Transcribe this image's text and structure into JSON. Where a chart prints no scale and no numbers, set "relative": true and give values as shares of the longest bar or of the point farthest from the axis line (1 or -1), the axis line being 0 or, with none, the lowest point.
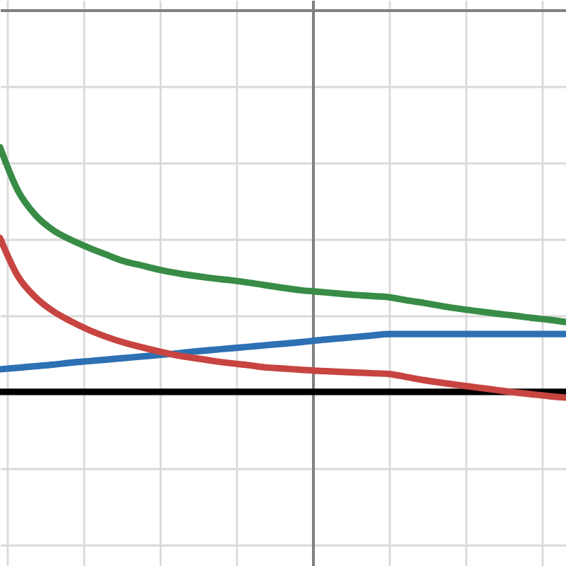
{
  "chart_data": {
    "type": "line",
    "relative": true,
    "grid": true,
    "line_style": "solid",
    "categories": [
      null,
      null,
      null,
      null,
      null,
      null,
      null,
      null,
      null,
      null,
      null,
      null,
      null,
      null,
      null,
      null,
      null,
      null,
      null,
      null,
      null,
      null,
      null,
      null,
      null,
      null,
      null,
      null,
      null,
      null,
      null,
      null,
      null
    ],
    "series": [
      {
        "color": "#000000",
        "values": [
          -0.985,
          -0.985,
          -0.985,
          -0.985,
          -0.985,
          -0.985,
          -0.985,
          -0.985,
          -0.985,
          -0.985,
          -0.985,
          -0.985,
          -0.985,
          -0.985,
          -0.985,
          -0.985,
          -0.985,
          -0.985,
          -0.985,
          -0.985,
          -0.985,
          -0.985,
          -0.985,
          -0.985,
          -0.985,
          -0.985,
          -0.985,
          -0.985,
          -0.985,
          -0.985,
          -0.985,
          -0.985,
          -0.985
        ]
      },
      {
        "color": "#2d70b3",
        "values": [
          -0.927,
          -0.923,
          -0.919,
          -0.915,
          -0.91,
          -0.906,
          -0.902,
          -0.898,
          -0.894,
          -0.89,
          -0.886,
          -0.881,
          -0.877,
          -0.873,
          -0.869,
          -0.865,
          -0.861,
          -0.857,
          -0.852,
          -0.848,
          -0.844,
          -0.84,
          -0.836,
          -0.836,
          -0.836,
          -0.836,
          -0.836,
          -0.836,
          -0.836,
          -0.836,
          -0.836,
          -0.836,
          -0.836
        ]
      },
      {
        "color": "#388c46",
        "values": [
          -0.354,
          -0.465,
          -0.529,
          -0.568,
          -0.593,
          -0.613,
          -0.631,
          -0.648,
          -0.659,
          -0.67,
          -0.679,
          -0.686,
          -0.692,
          -0.697,
          -0.703,
          -0.71,
          -0.717,
          -0.723,
          -0.727,
          -0.731,
          -0.735,
          -0.738,
          -0.741,
          -0.749,
          -0.756,
          -0.764,
          -0.771,
          -0.777,
          -0.783,
          -0.788,
          -0.794,
          -0.799,
          -0.805
        ]
      },
      {
        "color": "#c74440",
        "values": [
          -0.588,
          -0.686,
          -0.741,
          -0.777,
          -0.803,
          -0.825,
          -0.843,
          -0.858,
          -0.87,
          -0.881,
          -0.891,
          -0.898,
          -0.905,
          -0.911,
          -0.916,
          -0.922,
          -0.925,
          -0.928,
          -0.931,
          -0.933,
          -0.935,
          -0.937,
          -0.939,
          -0.947,
          -0.955,
          -0.962,
          -0.968,
          -0.974,
          -0.98,
          -0.986,
          -0.991,
          -0.996,
          -1.0
        ]
      }
    ]
  }
}
